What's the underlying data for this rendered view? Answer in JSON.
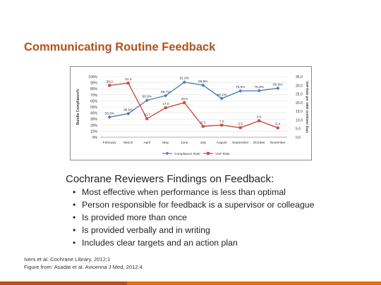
{
  "slide": {
    "title": "Communicating Routine Feedback",
    "accent_color": "#b5501f",
    "bar_color": "#d8701e",
    "findings_heading": "Cochrane Reviewers Findings on Feedback:",
    "findings": [
      "Most effective when performance is less than optimal",
      "Person responsible for feedback is a supervisor or colleague",
      "Is provided more than once",
      "Is provided verbally and in writing",
      "Includes clear targets and an action plan"
    ],
    "bullet_glyph": "•",
    "citations": [
      "Ivers et al. Cochrane Library, 2012;1",
      "Figure from: Asadat et al. Avicenna J Med, 2012:4"
    ]
  },
  "chart_data": {
    "type": "line",
    "categories": [
      "February",
      "March",
      "April",
      "May",
      "June",
      "July",
      "August",
      "September",
      "October",
      "November"
    ],
    "series": [
      {
        "name": "Compliance Rate",
        "axis": "left",
        "color": "#4a7fc1",
        "values": [
          33.3,
          38.9,
          60.9,
          68.7,
          91.0,
          85.9,
          64.1,
          76.5,
          76.9,
          80.9
        ],
        "labels": [
          "33.3%",
          "38.9%",
          "60.9%",
          "68.7%",
          "91.0%",
          "85.9%",
          "64.1%",
          "76.5%",
          "76.9%",
          "80.9%"
        ]
      },
      {
        "name": "VAP Rate",
        "axis": "right",
        "color": "#d14a3c",
        "values": [
          30.0,
          31.3,
          10.7,
          17.0,
          20.0,
          6.3,
          7.0,
          5.5,
          9.5,
          5.4
        ],
        "labels": [
          "30.0",
          "31.3",
          "10.7",
          "17.0",
          "20.0",
          "6.3",
          "7.0",
          "5.5",
          "9.5",
          "5.4"
        ]
      }
    ],
    "ylabel_left": "Bundle Compliance%",
    "ylabel_right": "VAP Rate per 1000 ventilator days",
    "ylim_left": [
      0,
      100
    ],
    "yticks_left": [
      "0%",
      "10%",
      "20%",
      "30%",
      "40%",
      "50%",
      "60%",
      "70%",
      "80%",
      "90%",
      "100%"
    ],
    "ylim_right": [
      0,
      35
    ],
    "yticks_right": [
      "0.0",
      "5.0",
      "10.0",
      "15.0",
      "20.0",
      "25.0",
      "30.0",
      "35.0"
    ],
    "grid": true,
    "legend_position": "bottom"
  }
}
